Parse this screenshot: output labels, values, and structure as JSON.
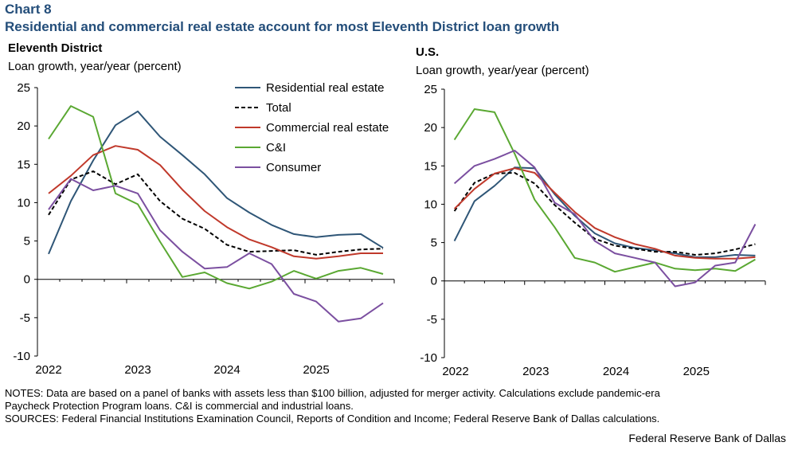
{
  "header": {
    "chart_label": "Chart 8",
    "title": "Residential and commercial real estate account for most Eleventh District loan growth"
  },
  "notes": {
    "line1": "NOTES: Data are based on a panel of banks with assets less than $100 billion, adjusted for merger activity. Calculations exclude pandemic-era",
    "line2": "Paycheck Protection Program loans. C&I is commercial and industrial loans.",
    "line3": "SOURCES: Federal Financial Institutions Examination Council, Reports of Condition and Income; Federal Reserve Bank of Dallas calculations."
  },
  "credit": "Federal Reserve Bank of Dallas",
  "colors": {
    "title": "#244e7a",
    "residential": "#2f5677",
    "total": "#000000",
    "commercial": "#c0392b",
    "ci": "#5aa832",
    "consumer": "#7b4fa0"
  },
  "chart_data": [
    {
      "type": "line",
      "title": "Eleventh District",
      "ylabel": "Loan growth, year/year (percent)",
      "ylim": [
        -10,
        25
      ],
      "yticks": [
        "25",
        "20",
        "15",
        "10",
        "5",
        "0",
        "-5",
        "-10"
      ],
      "xticks": [
        "2022",
        "2023",
        "2024",
        "2025"
      ],
      "legend_position": "top-right",
      "x": [
        "2022-Q1",
        "2022-Q2",
        "2022-Q3",
        "2022-Q4",
        "2023-Q1",
        "2023-Q2",
        "2023-Q3",
        "2023-Q4",
        "2024-Q1",
        "2024-Q2",
        "2024-Q3",
        "2024-Q4",
        "2025-Q1",
        "2025-Q2",
        "2025-Q3",
        "2025-Q4"
      ],
      "series": [
        {
          "name": "Residential real estate",
          "style": "solid",
          "values": [
            3.3,
            10.2,
            15.5,
            20.1,
            21.9,
            18.6,
            16.2,
            13.7,
            10.6,
            8.7,
            7.1,
            5.9,
            5.5,
            5.8,
            5.9,
            4.1
          ]
        },
        {
          "name": "Total",
          "style": "dashed",
          "values": [
            8.4,
            13.0,
            14.1,
            12.4,
            13.7,
            10.2,
            7.9,
            6.6,
            4.5,
            3.6,
            3.7,
            3.8,
            3.2,
            3.6,
            3.9,
            4.0
          ]
        },
        {
          "name": "Commercial real estate",
          "style": "solid",
          "values": [
            11.2,
            13.5,
            16.2,
            17.4,
            16.9,
            14.9,
            11.7,
            8.9,
            6.8,
            5.2,
            4.2,
            3.0,
            2.7,
            3.0,
            3.4,
            3.4
          ]
        },
        {
          "name": "C&I",
          "style": "solid",
          "values": [
            18.3,
            22.6,
            21.2,
            11.2,
            9.8,
            4.9,
            0.3,
            0.9,
            -0.5,
            -1.2,
            -0.3,
            1.1,
            0.1,
            1.1,
            1.5,
            0.7
          ]
        },
        {
          "name": "Consumer",
          "style": "solid",
          "values": [
            9.1,
            13.1,
            11.6,
            12.2,
            11.2,
            6.4,
            3.6,
            1.4,
            1.6,
            3.4,
            2.0,
            -1.9,
            -2.9,
            -5.5,
            -5.1,
            -3.1
          ]
        }
      ]
    },
    {
      "type": "line",
      "title": "U.S.",
      "ylabel": "Loan growth, year/year (percent)",
      "ylim": [
        -10,
        25
      ],
      "yticks": [
        "25",
        "20",
        "15",
        "10",
        "5",
        "0",
        "-5",
        "-10"
      ],
      "xticks": [
        "2022",
        "2023",
        "2024",
        "2025"
      ],
      "x": [
        "2022-Q1",
        "2022-Q2",
        "2022-Q3",
        "2022-Q4",
        "2023-Q1",
        "2023-Q2",
        "2023-Q3",
        "2023-Q4",
        "2024-Q1",
        "2024-Q2",
        "2024-Q3",
        "2024-Q4",
        "2025-Q1",
        "2025-Q2",
        "2025-Q3",
        "2025-Q4"
      ],
      "series": [
        {
          "name": "Residential real estate",
          "style": "solid",
          "values": [
            5.2,
            10.4,
            12.4,
            14.8,
            14.7,
            11.3,
            8.5,
            6.2,
            4.9,
            4.3,
            4.0,
            3.6,
            3.1,
            3.1,
            3.4,
            3.3
          ]
        },
        {
          "name": "Total",
          "style": "dashed",
          "values": [
            9.1,
            12.8,
            14.0,
            14.1,
            12.7,
            9.9,
            7.6,
            5.5,
            4.6,
            4.2,
            3.8,
            3.8,
            3.4,
            3.6,
            4.1,
            4.8
          ]
        },
        {
          "name": "Commercial real estate",
          "style": "solid",
          "values": [
            9.4,
            12.0,
            14.0,
            14.7,
            14.1,
            11.5,
            9.0,
            6.9,
            5.7,
            4.8,
            4.2,
            3.3,
            3.0,
            2.9,
            2.9,
            3.1
          ]
        },
        {
          "name": "C&I",
          "style": "solid",
          "values": [
            18.4,
            22.4,
            22.0,
            16.6,
            10.6,
            7.0,
            3.0,
            2.4,
            1.2,
            1.8,
            2.4,
            1.6,
            1.4,
            1.6,
            1.3,
            2.8
          ]
        },
        {
          "name": "Consumer",
          "style": "solid",
          "values": [
            12.7,
            15.0,
            15.9,
            17.0,
            14.8,
            10.2,
            8.7,
            5.2,
            3.6,
            3.0,
            2.4,
            -0.7,
            -0.2,
            2.0,
            2.4,
            7.4
          ]
        }
      ]
    }
  ]
}
